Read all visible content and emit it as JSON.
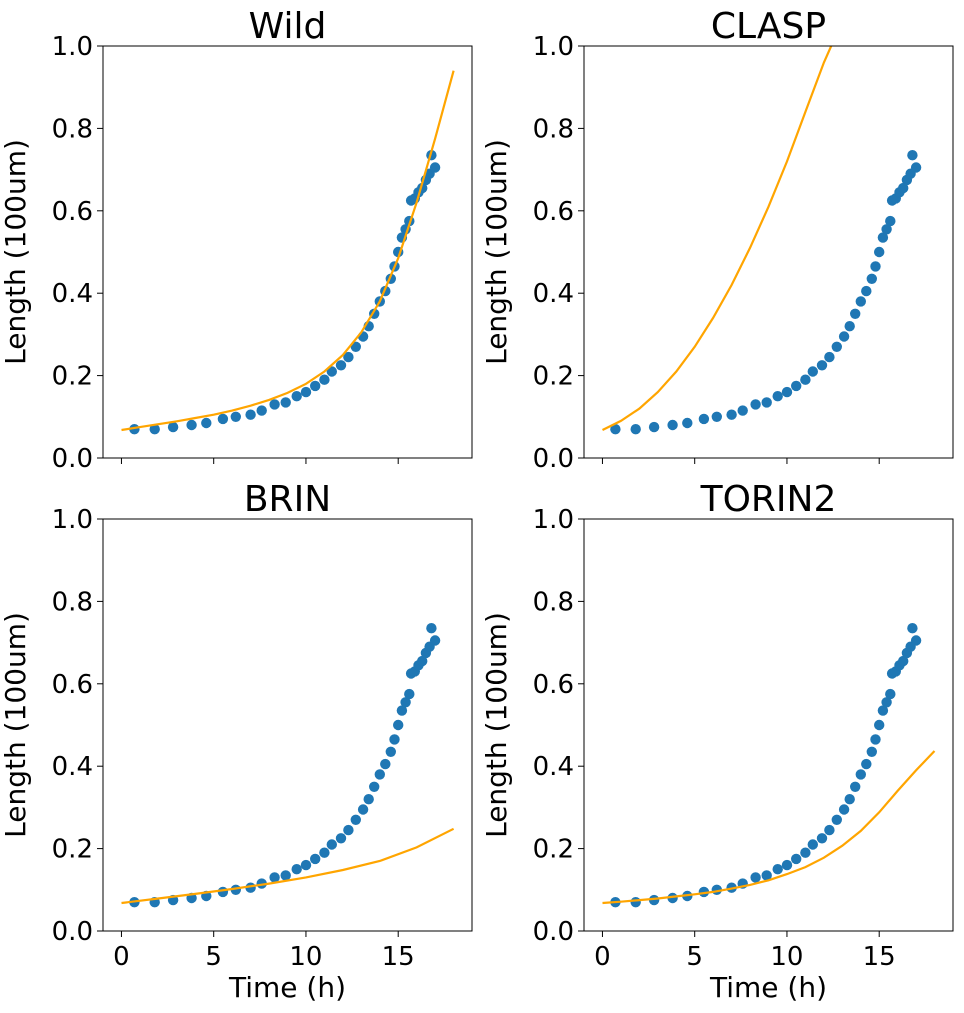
{
  "chart_data": [
    {
      "type": "scatter",
      "title": "Wild",
      "xlabel": "",
      "ylabel": "Length (100um)",
      "xlim": [
        -1,
        19
      ],
      "ylim": [
        0,
        1
      ],
      "xticks": [
        0,
        5,
        10,
        15
      ],
      "xtick_labels_visible": false,
      "yticks": [
        0.0,
        0.2,
        0.4,
        0.6,
        0.8,
        1.0
      ],
      "ytick_labels": [
        "0.0",
        "0.2",
        "0.4",
        "0.6",
        "0.8",
        "1.0"
      ],
      "grid": false,
      "series": [
        {
          "kind": "scatter",
          "color": "#1f77b4",
          "x": [
            0.7,
            1.8,
            2.8,
            3.8,
            4.6,
            5.5,
            6.2,
            7.0,
            7.6,
            8.3,
            8.9,
            9.5,
            10.0,
            10.5,
            11.0,
            11.4,
            11.9,
            12.3,
            12.7,
            13.1,
            13.4,
            13.7,
            14.0,
            14.3,
            14.6,
            14.8,
            15.0,
            15.2,
            15.4,
            15.6,
            15.7,
            15.9,
            16.1,
            16.3,
            16.5,
            16.7,
            16.8,
            17.0
          ],
          "y": [
            0.07,
            0.07,
            0.075,
            0.08,
            0.085,
            0.095,
            0.1,
            0.105,
            0.115,
            0.13,
            0.135,
            0.15,
            0.16,
            0.175,
            0.19,
            0.21,
            0.225,
            0.245,
            0.27,
            0.295,
            0.32,
            0.35,
            0.38,
            0.405,
            0.435,
            0.465,
            0.5,
            0.535,
            0.555,
            0.575,
            0.625,
            0.63,
            0.645,
            0.655,
            0.675,
            0.69,
            0.735,
            0.705
          ]
        },
        {
          "kind": "line",
          "color": "#ffa500",
          "x": [
            0,
            1,
            2,
            3,
            4,
            5,
            6,
            7,
            8,
            9,
            10,
            11,
            12,
            13,
            14,
            15,
            16,
            17,
            18
          ],
          "y": [
            0.068,
            0.075,
            0.082,
            0.089,
            0.097,
            0.105,
            0.115,
            0.127,
            0.141,
            0.158,
            0.18,
            0.21,
            0.25,
            0.305,
            0.38,
            0.485,
            0.62,
            0.775,
            0.94
          ]
        }
      ]
    },
    {
      "type": "scatter",
      "title": "CLASP",
      "xlabel": "",
      "ylabel": "Length (100um)",
      "xlim": [
        -1,
        19
      ],
      "ylim": [
        0,
        1
      ],
      "xticks": [
        0,
        5,
        10,
        15
      ],
      "xtick_labels_visible": false,
      "yticks": [
        0.0,
        0.2,
        0.4,
        0.6,
        0.8,
        1.0
      ],
      "ytick_labels": [
        "0.0",
        "0.2",
        "0.4",
        "0.6",
        "0.8",
        "1.0"
      ],
      "grid": false,
      "series": [
        {
          "kind": "scatter",
          "color": "#1f77b4",
          "x": [
            0.7,
            1.8,
            2.8,
            3.8,
            4.6,
            5.5,
            6.2,
            7.0,
            7.6,
            8.3,
            8.9,
            9.5,
            10.0,
            10.5,
            11.0,
            11.4,
            11.9,
            12.3,
            12.7,
            13.1,
            13.4,
            13.7,
            14.0,
            14.3,
            14.6,
            14.8,
            15.0,
            15.2,
            15.4,
            15.6,
            15.7,
            15.9,
            16.1,
            16.3,
            16.5,
            16.7,
            16.8,
            17.0
          ],
          "y": [
            0.07,
            0.07,
            0.075,
            0.08,
            0.085,
            0.095,
            0.1,
            0.105,
            0.115,
            0.13,
            0.135,
            0.15,
            0.16,
            0.175,
            0.19,
            0.21,
            0.225,
            0.245,
            0.27,
            0.295,
            0.32,
            0.35,
            0.38,
            0.405,
            0.435,
            0.465,
            0.5,
            0.535,
            0.555,
            0.575,
            0.625,
            0.63,
            0.645,
            0.655,
            0.675,
            0.69,
            0.735,
            0.705
          ]
        },
        {
          "kind": "line",
          "color": "#ffa500",
          "x": [
            0,
            1,
            2,
            3,
            4,
            5,
            6,
            7,
            8,
            9,
            10,
            11,
            12,
            12.4
          ],
          "y": [
            0.068,
            0.09,
            0.12,
            0.16,
            0.21,
            0.27,
            0.34,
            0.42,
            0.51,
            0.61,
            0.72,
            0.84,
            0.96,
            1.0
          ]
        }
      ]
    },
    {
      "type": "scatter",
      "title": "BRIN",
      "xlabel": "Time (h)",
      "ylabel": "Length (100um)",
      "xlim": [
        -1,
        19
      ],
      "ylim": [
        0,
        1
      ],
      "xticks": [
        0,
        5,
        10,
        15
      ],
      "xtick_labels": [
        "0",
        "5",
        "10",
        "15"
      ],
      "xtick_labels_visible": true,
      "yticks": [
        0.0,
        0.2,
        0.4,
        0.6,
        0.8,
        1.0
      ],
      "ytick_labels": [
        "0.0",
        "0.2",
        "0.4",
        "0.6",
        "0.8",
        "1.0"
      ],
      "grid": false,
      "series": [
        {
          "kind": "scatter",
          "color": "#1f77b4",
          "x": [
            0.7,
            1.8,
            2.8,
            3.8,
            4.6,
            5.5,
            6.2,
            7.0,
            7.6,
            8.3,
            8.9,
            9.5,
            10.0,
            10.5,
            11.0,
            11.4,
            11.9,
            12.3,
            12.7,
            13.1,
            13.4,
            13.7,
            14.0,
            14.3,
            14.6,
            14.8,
            15.0,
            15.2,
            15.4,
            15.6,
            15.7,
            15.9,
            16.1,
            16.3,
            16.5,
            16.7,
            16.8,
            17.0
          ],
          "y": [
            0.07,
            0.07,
            0.075,
            0.08,
            0.085,
            0.095,
            0.1,
            0.105,
            0.115,
            0.13,
            0.135,
            0.15,
            0.16,
            0.175,
            0.19,
            0.21,
            0.225,
            0.245,
            0.27,
            0.295,
            0.32,
            0.35,
            0.38,
            0.405,
            0.435,
            0.465,
            0.5,
            0.535,
            0.555,
            0.575,
            0.625,
            0.63,
            0.645,
            0.655,
            0.675,
            0.69,
            0.735,
            0.705
          ]
        },
        {
          "kind": "line",
          "color": "#ffa500",
          "x": [
            0,
            2,
            4,
            6,
            8,
            10,
            12,
            14,
            16,
            18
          ],
          "y": [
            0.068,
            0.079,
            0.09,
            0.102,
            0.115,
            0.13,
            0.148,
            0.17,
            0.203,
            0.248
          ]
        }
      ]
    },
    {
      "type": "scatter",
      "title": "TORIN2",
      "xlabel": "Time (h)",
      "ylabel": "Length (100um)",
      "xlim": [
        -1,
        19
      ],
      "ylim": [
        0,
        1
      ],
      "xticks": [
        0,
        5,
        10,
        15
      ],
      "xtick_labels": [
        "0",
        "5",
        "10",
        "15"
      ],
      "xtick_labels_visible": true,
      "yticks": [
        0.0,
        0.2,
        0.4,
        0.6,
        0.8,
        1.0
      ],
      "ytick_labels": [
        "0.0",
        "0.2",
        "0.4",
        "0.6",
        "0.8",
        "1.0"
      ],
      "grid": false,
      "series": [
        {
          "kind": "scatter",
          "color": "#1f77b4",
          "x": [
            0.7,
            1.8,
            2.8,
            3.8,
            4.6,
            5.5,
            6.2,
            7.0,
            7.6,
            8.3,
            8.9,
            9.5,
            10.0,
            10.5,
            11.0,
            11.4,
            11.9,
            12.3,
            12.7,
            13.1,
            13.4,
            13.7,
            14.0,
            14.3,
            14.6,
            14.8,
            15.0,
            15.2,
            15.4,
            15.6,
            15.7,
            15.9,
            16.1,
            16.3,
            16.5,
            16.7,
            16.8,
            17.0
          ],
          "y": [
            0.07,
            0.07,
            0.075,
            0.08,
            0.085,
            0.095,
            0.1,
            0.105,
            0.115,
            0.13,
            0.135,
            0.15,
            0.16,
            0.175,
            0.19,
            0.21,
            0.225,
            0.245,
            0.27,
            0.295,
            0.32,
            0.35,
            0.38,
            0.405,
            0.435,
            0.465,
            0.5,
            0.535,
            0.555,
            0.575,
            0.625,
            0.63,
            0.645,
            0.655,
            0.675,
            0.69,
            0.735,
            0.705
          ]
        },
        {
          "kind": "line",
          "color": "#ffa500",
          "x": [
            0,
            1,
            2,
            3,
            4,
            5,
            6,
            7,
            8,
            9,
            10,
            11,
            12,
            13,
            14,
            15,
            16,
            17,
            18
          ],
          "y": [
            0.068,
            0.071,
            0.075,
            0.079,
            0.084,
            0.089,
            0.095,
            0.103,
            0.112,
            0.123,
            0.138,
            0.155,
            0.178,
            0.207,
            0.243,
            0.288,
            0.34,
            0.39,
            0.437
          ]
        }
      ]
    }
  ]
}
